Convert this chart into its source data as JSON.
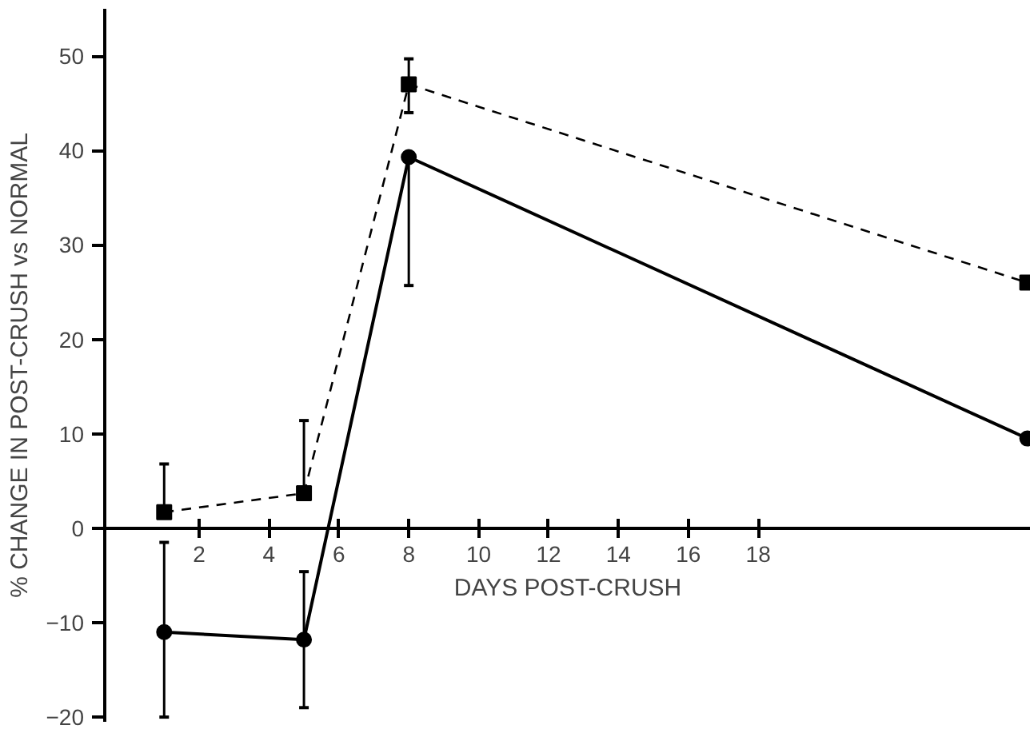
{
  "chart_data": {
    "type": "line",
    "xlabel": "DAYS POST-CRUSH",
    "ylabel": "% CHANGE IN POST-CRUSH vs NORMAL",
    "x": [
      1,
      5,
      8,
      25.7
    ],
    "xlim": [
      -0.7,
      25.8
    ],
    "xticks": [
      2,
      4,
      6,
      8,
      10,
      12,
      14,
      16,
      18
    ],
    "ylim": [
      -20.5,
      55
    ],
    "yticks": [
      -20,
      -10,
      0,
      10,
      20,
      30,
      40,
      50
    ],
    "grid": false,
    "series": [
      {
        "color": "#000000",
        "marker": "square",
        "line_style": "dashed",
        "values": [
          1.7,
          3.7,
          47,
          26
        ],
        "errors": [
          [
            1.7,
            6.8
          ],
          [
            3.7,
            11.4
          ],
          [
            44,
            49.7
          ],
          null
        ]
      },
      {
        "color": "#000000",
        "marker": "circle",
        "line_style": "solid",
        "values": [
          -11,
          -11.8,
          39.3,
          9.5
        ],
        "errors": [
          [
            -20,
            -1.5
          ],
          [
            -19,
            -4.6
          ],
          [
            25.7,
            39.3
          ],
          null
        ]
      }
    ]
  }
}
